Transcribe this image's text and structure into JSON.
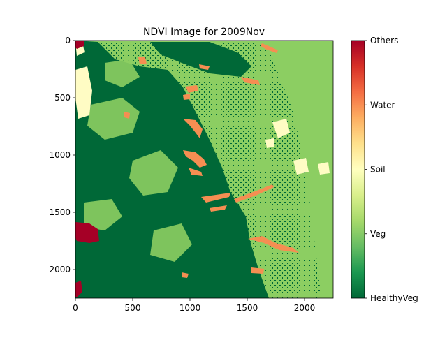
{
  "chart_data": {
    "type": "heatmap",
    "title": "NDVI Image for 2009Nov",
    "xlabel": "",
    "ylabel": "",
    "xlim": [
      0,
      2250
    ],
    "ylim": [
      2250,
      0
    ],
    "x_ticks": [
      0,
      500,
      1000,
      1500,
      2000
    ],
    "y_ticks": [
      0,
      500,
      1000,
      1500,
      2000
    ],
    "classes": [
      "HealthyVeg",
      "Veg",
      "Soil",
      "Water",
      "Others"
    ],
    "class_colors": [
      "#006837",
      "#8cce62",
      "#fffcc4",
      "#f58e52",
      "#a50026"
    ],
    "colorbar": {
      "labels": [
        "HealthyVeg",
        "Veg",
        "Soil",
        "Water",
        "Others"
      ],
      "gradient": [
        "#006837",
        "#1a9850",
        "#66bd63",
        "#a6d96a",
        "#d9ef8b",
        "#ffffbf",
        "#fee08b",
        "#fdae61",
        "#f46d43",
        "#d73027",
        "#a50026"
      ]
    }
  }
}
